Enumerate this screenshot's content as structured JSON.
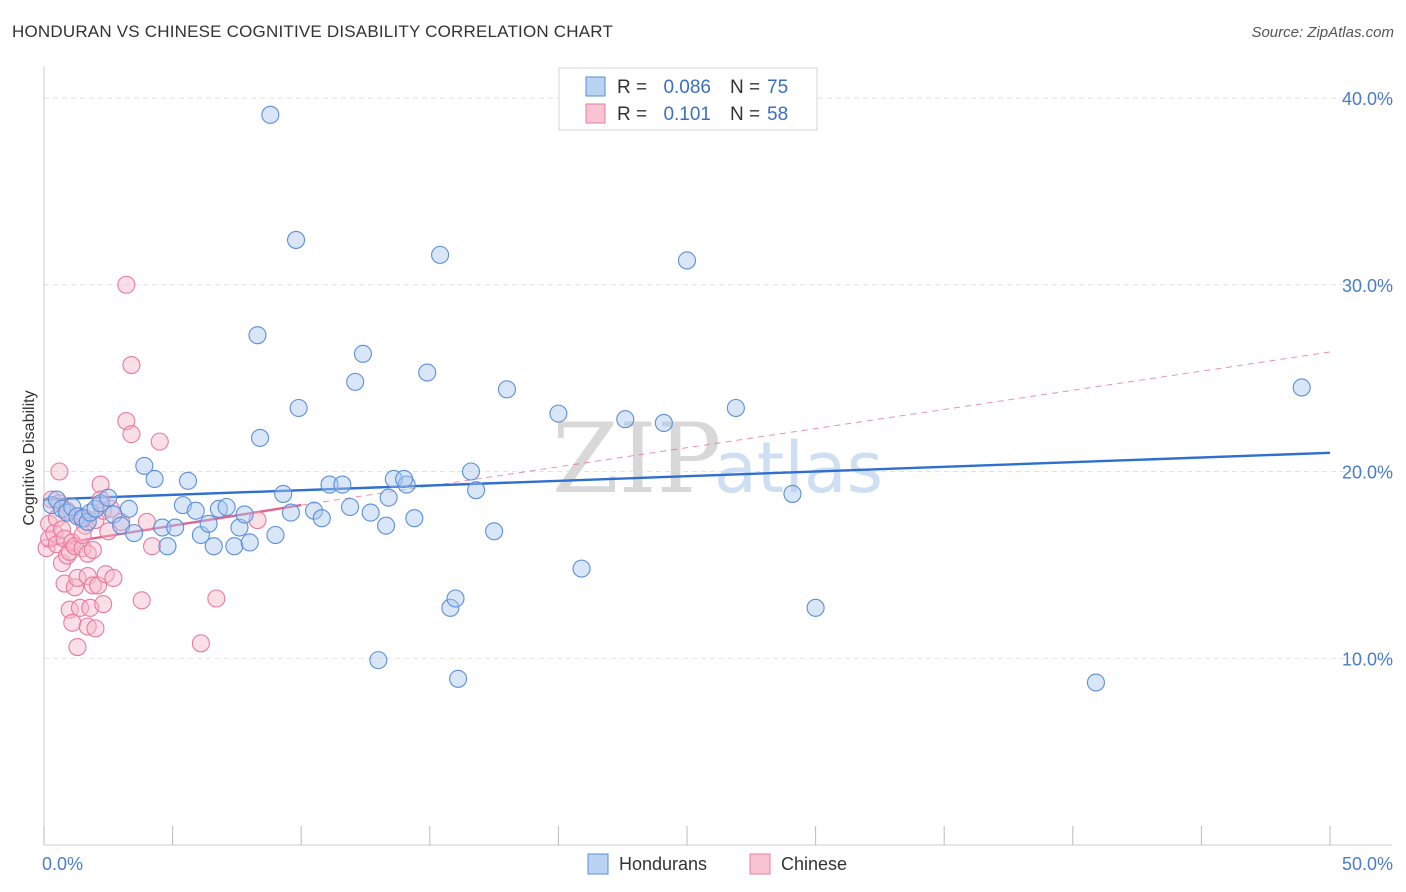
{
  "title": "HONDURAN VS CHINESE COGNITIVE DISABILITY CORRELATION CHART",
  "source": "Source: ZipAtlas.com",
  "watermark": {
    "zip": "ZIP",
    "atlas": "atlas"
  },
  "colors": {
    "hondurans_fill": "#a9c8f0",
    "hondurans_stroke": "#5b8fd8",
    "hondurans_line": "#2f6fd0",
    "chinese_fill": "#f7b7c9",
    "chinese_stroke": "#e87ba0",
    "chinese_line": "#e0648e",
    "tick_label": "#4a7cc9",
    "grid": "#e2e2e2"
  },
  "legend": {
    "rows": [
      {
        "r_label": "R =",
        "r_value": "0.086",
        "n_label": "N =",
        "n_value": "75"
      },
      {
        "r_label": "R =",
        "r_value": "0.101",
        "n_label": "N =",
        "n_value": "58"
      }
    ]
  },
  "chart_data": {
    "type": "scatter",
    "title": "HONDURAN VS CHINESE COGNITIVE DISABILITY CORRELATION CHART",
    "xlabel": "",
    "ylabel": "Cognitive Disability",
    "xlim": [
      0,
      50
    ],
    "ylim": [
      0,
      41.5
    ],
    "x_ticks": [
      0,
      5,
      10,
      15,
      20,
      25,
      30,
      35,
      40,
      45,
      50
    ],
    "x_tick_labels": [
      {
        "value": 0,
        "label": "0.0%"
      },
      {
        "value": 50,
        "label": "50.0%"
      }
    ],
    "y_ticks": [
      {
        "value": 10,
        "label": "10.0%"
      },
      {
        "value": 20,
        "label": "20.0%"
      },
      {
        "value": 30,
        "label": "30.0%"
      },
      {
        "value": 40,
        "label": "40.0%"
      }
    ],
    "grid": true,
    "legend_position": "top-center",
    "series": [
      {
        "name": "Hondurans",
        "r": 0.086,
        "n": 75,
        "trend": {
          "x": [
            0,
            50
          ],
          "y": [
            18.5,
            21.0
          ]
        },
        "points": [
          [
            0.3,
            18.2
          ],
          [
            0.5,
            18.5
          ],
          [
            0.7,
            18.0
          ],
          [
            0.9,
            17.8
          ],
          [
            1.1,
            18.1
          ],
          [
            1.3,
            17.6
          ],
          [
            1.5,
            17.5
          ],
          [
            1.7,
            17.3
          ],
          [
            1.8,
            17.8
          ],
          [
            2.0,
            18.0
          ],
          [
            2.2,
            18.3
          ],
          [
            2.5,
            18.6
          ],
          [
            2.7,
            17.7
          ],
          [
            3.0,
            17.1
          ],
          [
            3.3,
            18.0
          ],
          [
            3.5,
            16.7
          ],
          [
            3.9,
            20.3
          ],
          [
            4.3,
            19.6
          ],
          [
            4.6,
            17.0
          ],
          [
            4.8,
            16.0
          ],
          [
            5.1,
            17.0
          ],
          [
            5.4,
            18.2
          ],
          [
            5.6,
            19.5
          ],
          [
            5.9,
            17.9
          ],
          [
            6.1,
            16.6
          ],
          [
            6.4,
            17.2
          ],
          [
            6.6,
            16.0
          ],
          [
            6.8,
            18.0
          ],
          [
            7.1,
            18.1
          ],
          [
            7.4,
            16.0
          ],
          [
            7.6,
            17.0
          ],
          [
            7.8,
            17.7
          ],
          [
            8.0,
            16.2
          ],
          [
            8.3,
            27.3
          ],
          [
            8.4,
            21.8
          ],
          [
            8.8,
            39.1
          ],
          [
            9.0,
            16.6
          ],
          [
            9.3,
            18.8
          ],
          [
            9.6,
            17.8
          ],
          [
            9.8,
            32.4
          ],
          [
            9.9,
            23.4
          ],
          [
            10.5,
            17.9
          ],
          [
            10.8,
            17.5
          ],
          [
            11.1,
            19.3
          ],
          [
            11.6,
            19.3
          ],
          [
            11.9,
            18.1
          ],
          [
            12.1,
            24.8
          ],
          [
            12.4,
            26.3
          ],
          [
            12.7,
            17.8
          ],
          [
            13.0,
            9.9
          ],
          [
            13.3,
            17.1
          ],
          [
            13.4,
            18.6
          ],
          [
            13.6,
            19.6
          ],
          [
            14.1,
            19.3
          ],
          [
            14.0,
            19.6
          ],
          [
            14.4,
            17.5
          ],
          [
            14.9,
            25.3
          ],
          [
            15.4,
            31.6
          ],
          [
            15.8,
            12.7
          ],
          [
            16.0,
            13.2
          ],
          [
            16.1,
            8.9
          ],
          [
            16.6,
            20.0
          ],
          [
            16.8,
            19.0
          ],
          [
            17.5,
            16.8
          ],
          [
            18.0,
            24.4
          ],
          [
            20.0,
            23.1
          ],
          [
            20.9,
            14.8
          ],
          [
            22.6,
            22.8
          ],
          [
            24.1,
            22.6
          ],
          [
            25.0,
            31.3
          ],
          [
            26.9,
            23.4
          ],
          [
            29.1,
            18.8
          ],
          [
            30.0,
            12.7
          ],
          [
            40.9,
            8.7
          ],
          [
            48.9,
            24.5
          ]
        ]
      },
      {
        "name": "Chinese",
        "r": 0.101,
        "n": 58,
        "trend_solid": {
          "x": [
            0,
            10
          ],
          "y": [
            16.0,
            18.2
          ]
        },
        "trend_dashed": {
          "x": [
            10,
            50
          ],
          "y": [
            18.2,
            26.4
          ]
        },
        "points": [
          [
            0.1,
            15.9
          ],
          [
            0.2,
            16.4
          ],
          [
            0.2,
            17.2
          ],
          [
            0.3,
            18.5
          ],
          [
            0.4,
            16.7
          ],
          [
            0.5,
            17.5
          ],
          [
            0.5,
            16.1
          ],
          [
            0.6,
            20.0
          ],
          [
            0.6,
            18.3
          ],
          [
            0.7,
            15.1
          ],
          [
            0.7,
            16.9
          ],
          [
            0.8,
            14.0
          ],
          [
            0.8,
            16.4
          ],
          [
            0.9,
            15.5
          ],
          [
            0.9,
            17.9
          ],
          [
            1.0,
            15.7
          ],
          [
            1.0,
            12.6
          ],
          [
            1.1,
            11.9
          ],
          [
            1.1,
            16.2
          ],
          [
            1.2,
            13.8
          ],
          [
            1.2,
            16.0
          ],
          [
            1.3,
            10.6
          ],
          [
            1.3,
            14.3
          ],
          [
            1.4,
            12.7
          ],
          [
            1.4,
            17.6
          ],
          [
            1.5,
            15.9
          ],
          [
            1.6,
            17.5
          ],
          [
            1.6,
            17.1
          ],
          [
            1.7,
            11.7
          ],
          [
            1.7,
            14.4
          ],
          [
            1.7,
            15.6
          ],
          [
            1.8,
            12.7
          ],
          [
            1.9,
            13.9
          ],
          [
            1.9,
            15.8
          ],
          [
            2.0,
            11.6
          ],
          [
            2.0,
            17.4
          ],
          [
            2.1,
            13.9
          ],
          [
            2.2,
            19.3
          ],
          [
            2.2,
            18.5
          ],
          [
            2.3,
            12.9
          ],
          [
            2.3,
            17.9
          ],
          [
            2.4,
            14.5
          ],
          [
            2.5,
            16.8
          ],
          [
            2.6,
            18.0
          ],
          [
            2.7,
            14.3
          ],
          [
            3.0,
            17.3
          ],
          [
            3.2,
            30.0
          ],
          [
            3.2,
            22.7
          ],
          [
            3.4,
            25.7
          ],
          [
            3.4,
            22.0
          ],
          [
            3.8,
            13.1
          ],
          [
            4.0,
            17.3
          ],
          [
            4.2,
            16.0
          ],
          [
            4.5,
            21.6
          ],
          [
            6.1,
            10.8
          ],
          [
            6.7,
            13.2
          ],
          [
            8.3,
            17.4
          ],
          [
            1.5,
            16.6
          ]
        ]
      }
    ]
  },
  "bottom_legend": [
    {
      "label": "Hondurans"
    },
    {
      "label": "Chinese"
    }
  ]
}
